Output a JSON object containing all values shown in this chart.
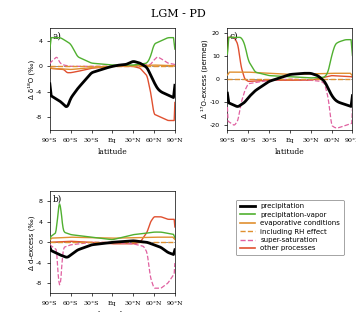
{
  "title": "LGM - PD",
  "lat_labels": [
    "90°S",
    "60°S",
    "30°S",
    "Eq",
    "30°N",
    "60°N",
    "90°N"
  ],
  "lat_ticks": [
    -90,
    -60,
    -30,
    0,
    30,
    60,
    90
  ],
  "colors": {
    "precipitation": "#000000",
    "precip_vapor": "#50b030",
    "evaporative": "#e09030",
    "including_rh": "#e09030",
    "super_sat": "#e060a0",
    "other": "#e05030"
  },
  "panel_a": {
    "ylabel": "Δ δ¹⁸O (‰)",
    "ylim": [
      -10,
      6
    ],
    "yticks": [
      -8,
      -4,
      0,
      4
    ],
    "label": "a)"
  },
  "panel_b": {
    "ylabel": "Δ d-excess (‰)",
    "ylim": [
      -10,
      10
    ],
    "yticks": [
      -8,
      -4,
      0,
      4,
      8
    ],
    "label": "b)"
  },
  "panel_c": {
    "ylabel": "Δ ¹⁷O-excess (permeg)",
    "ylim": [
      -22,
      22
    ],
    "yticks": [
      -20,
      -10,
      0,
      10,
      20
    ],
    "label": "c)"
  },
  "legend_entries": [
    {
      "label": "precipitation",
      "color": "#000000",
      "lw": 2.0,
      "ls": "solid"
    },
    {
      "label": "precipitation-vapor",
      "color": "#50b030",
      "lw": 1.2,
      "ls": "solid"
    },
    {
      "label": "evaporative conditions",
      "color": "#e09030",
      "lw": 1.2,
      "ls": "solid"
    },
    {
      "label": "including RH effect",
      "color": "#e09030",
      "lw": 1.0,
      "ls": "dashed"
    },
    {
      "label": "super-saturation",
      "color": "#e060a0",
      "lw": 1.0,
      "ls": "dashed"
    },
    {
      "label": "other processes",
      "color": "#e05030",
      "lw": 1.2,
      "ls": "solid"
    }
  ]
}
